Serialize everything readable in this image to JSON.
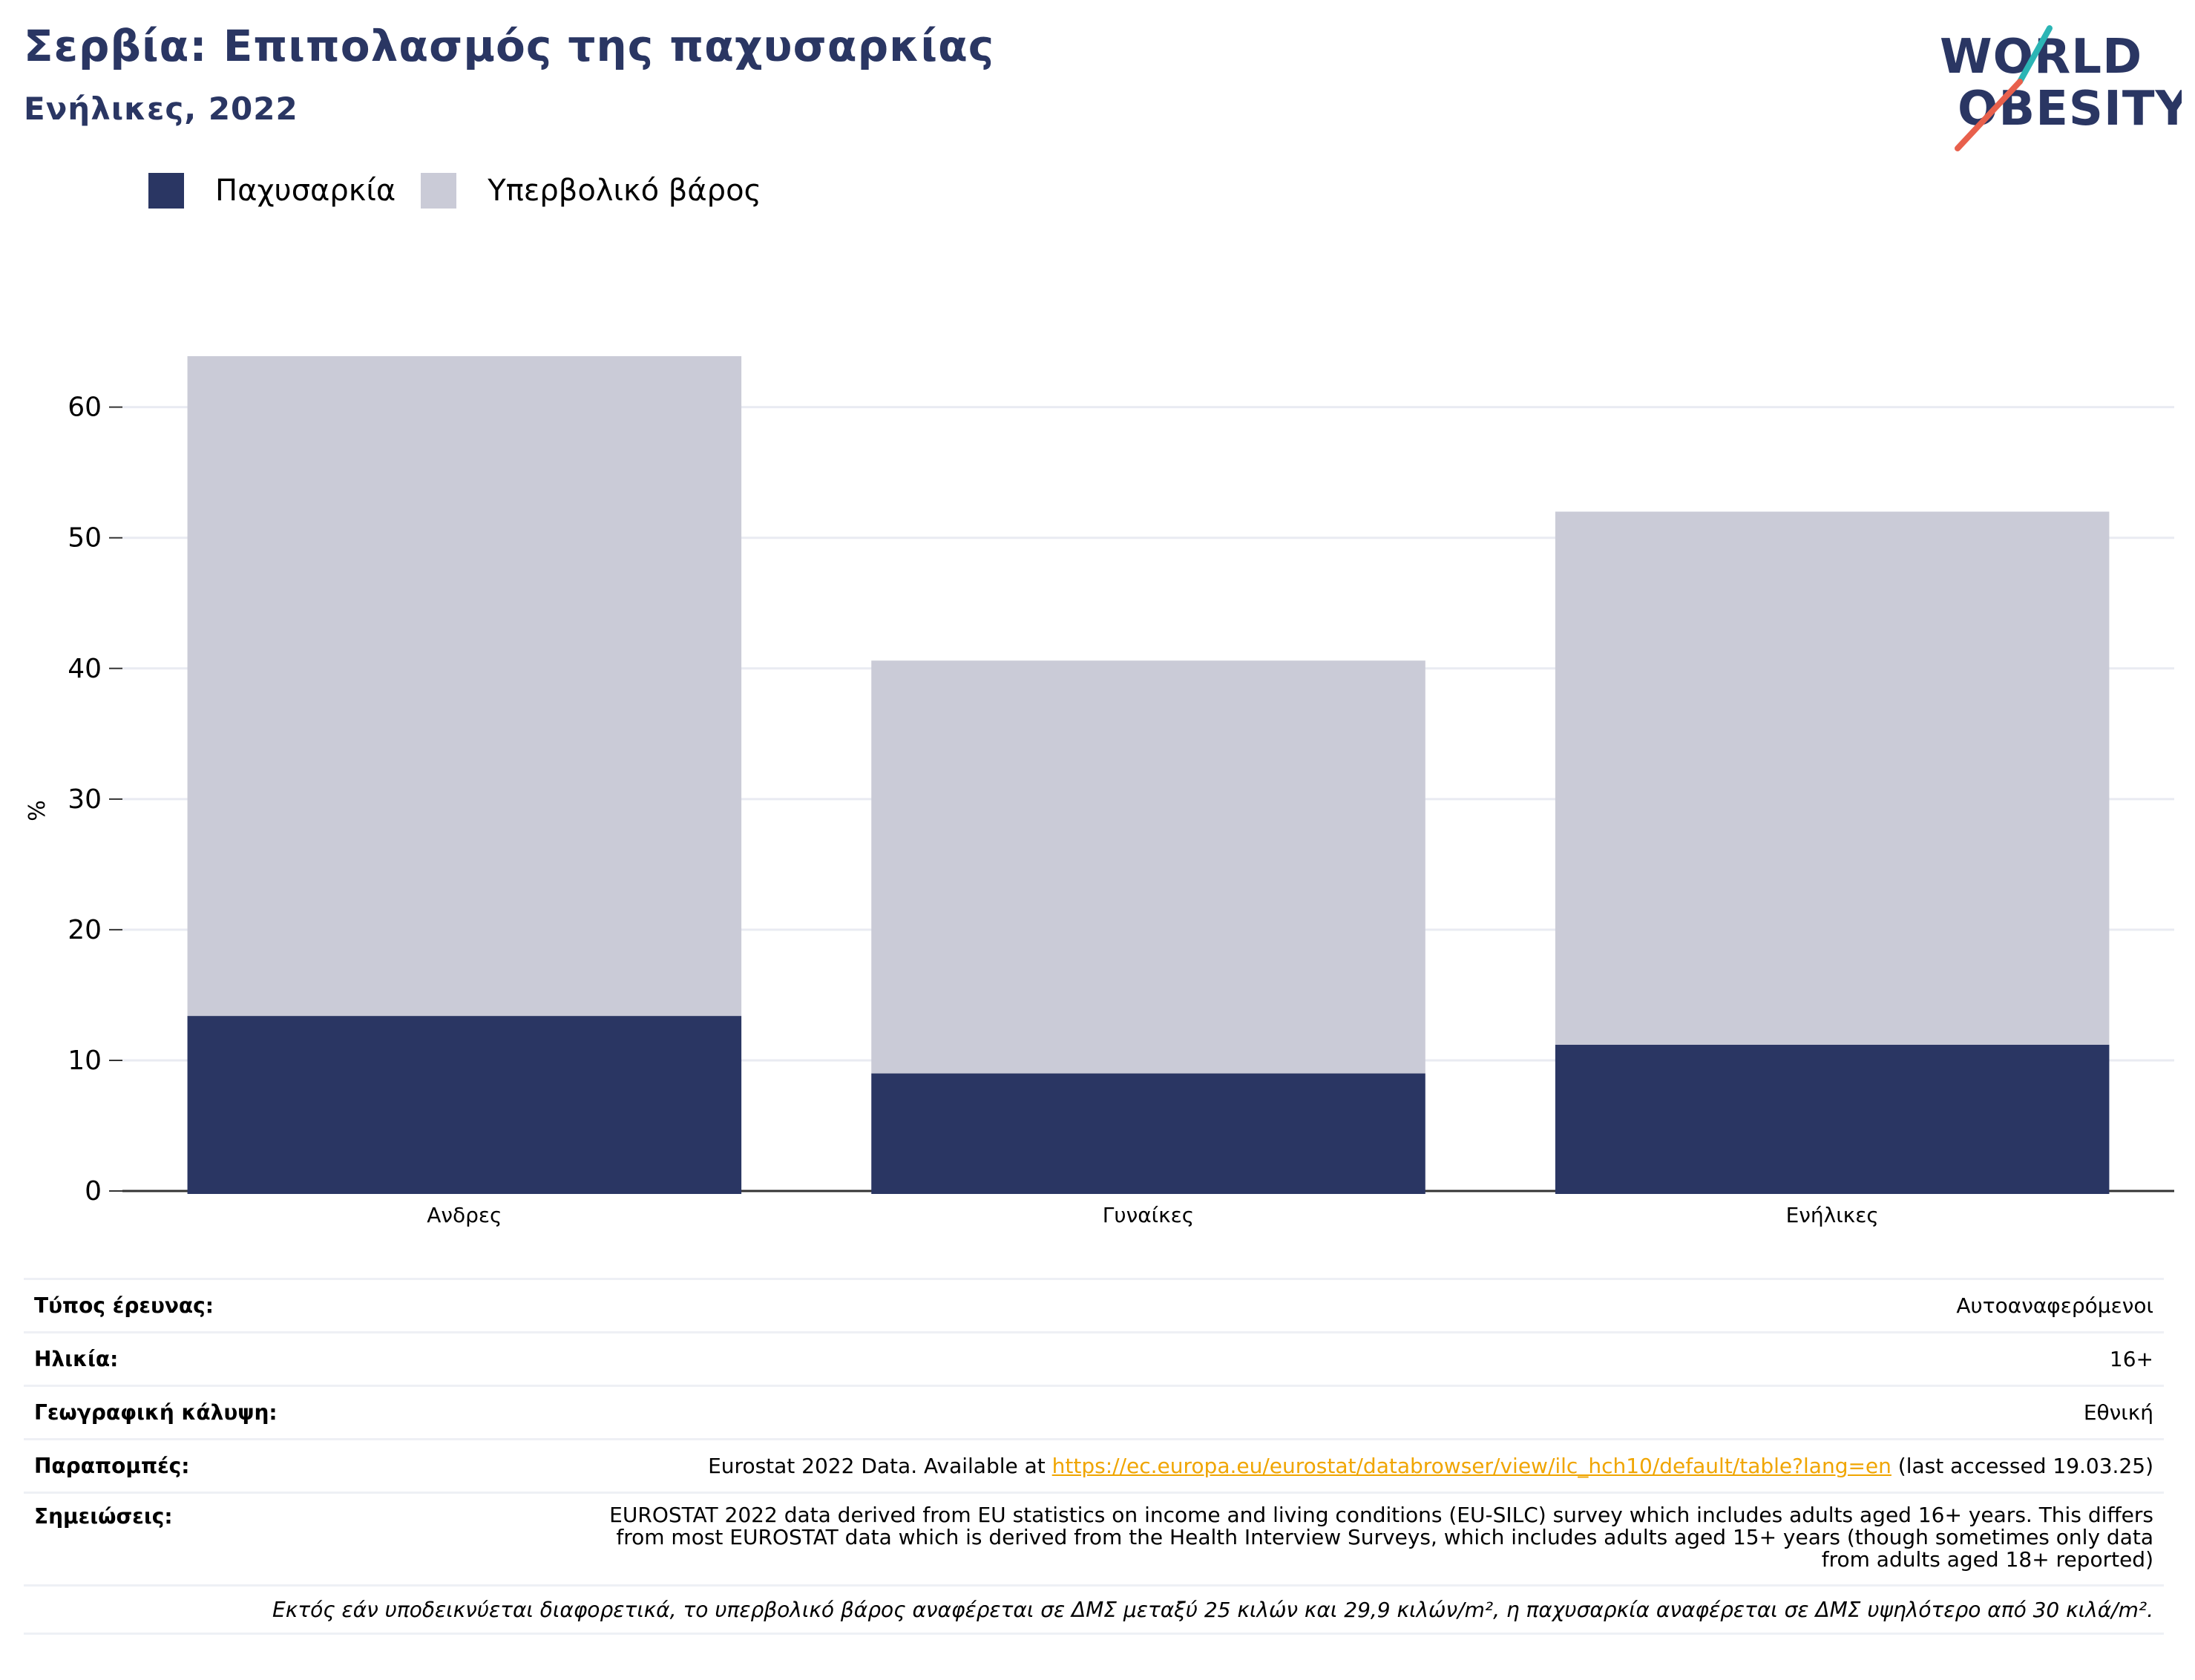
{
  "header": {
    "title": "Σερβία: Επιπολασμός της παχυσαρκίας",
    "subtitle": "Ενήλικες, 2022"
  },
  "logo": {
    "line1": "WORLD",
    "line2": "OBESITY"
  },
  "colors": {
    "obesity": "#2a3663",
    "overweight": "#cacbd7",
    "title": "#2a3663",
    "link": "#f0a500"
  },
  "chart_data": {
    "type": "bar",
    "stacked": true,
    "categories": [
      "Ανδρες",
      "Γυναίκες",
      "Ενήλικες"
    ],
    "series": [
      {
        "name": "Παχυσαρκία",
        "values": [
          13.4,
          9.0,
          11.2
        ]
      },
      {
        "name": "Υπερβολικό βάρος",
        "values": [
          50.5,
          31.6,
          40.8
        ]
      }
    ],
    "totals": [
      63.9,
      40.6,
      52.0
    ],
    "ylabel": "%",
    "ylim": [
      0,
      63.9
    ],
    "yticks": [
      0,
      10,
      20,
      30,
      40,
      50,
      60
    ],
    "grid": true,
    "legend_position": "top-left"
  },
  "info": {
    "survey_type": {
      "label": "Τύπος έρευνας:",
      "value": "Αυτοαναφερόμενοι"
    },
    "age": {
      "label": "Ηλικία:",
      "value": "16+"
    },
    "coverage": {
      "label": "Γεωγραφική κάλυψη:",
      "value": "Εθνική"
    },
    "references": {
      "label": "Παραπομπές:",
      "prefix": "Eurostat 2022 Data. Available at ",
      "link": "https://ec.europa.eu/eurostat/databrowser/view/ilc_hch10/default/table?lang=en",
      "suffix": " (last accessed 19.03.25)"
    },
    "notes": {
      "label": "Σημειώσεις:",
      "value": "EUROSTAT 2022 data derived from EU statistics on income and living conditions (EU-SILC) survey which includes adults aged 16+ years. This differs from most EUROSTAT data which is derived from the Health Interview Surveys, which includes adults aged 15+ years (though sometimes only data from adults aged 18+ reported)"
    },
    "footnote": "Εκτός εάν υποδεικνύεται διαφορετικά, το υπερβολικό βάρος αναφέρεται σε ΔΜΣ μεταξύ 25 κιλών και 29,9 κιλών/m², η παχυσαρκία αναφέρεται σε ΔΜΣ υψηλότερο από 30 κιλά/m²."
  }
}
